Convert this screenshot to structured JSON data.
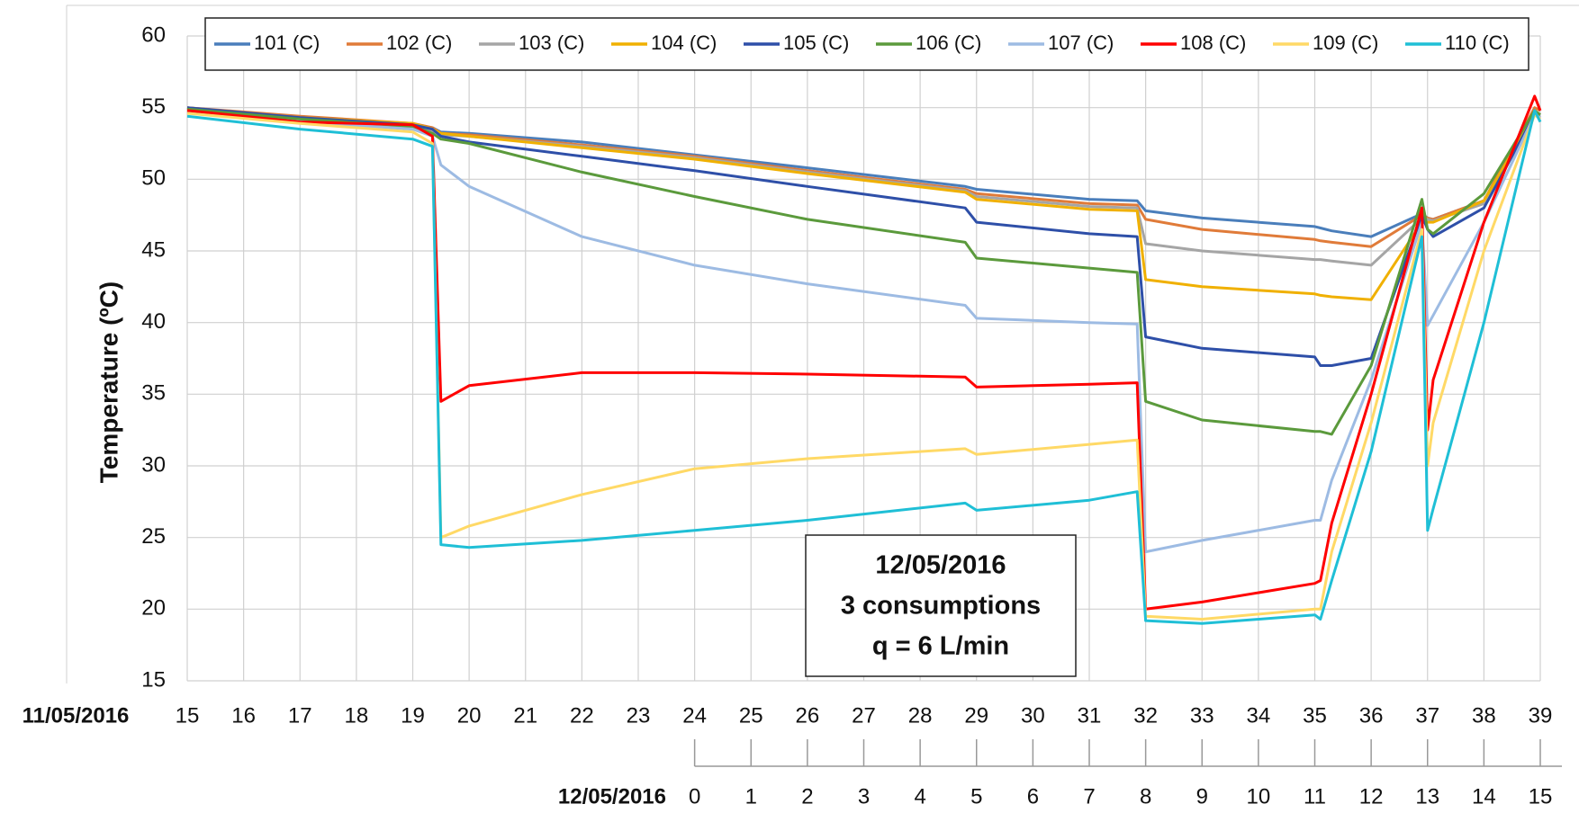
{
  "chart_data": {
    "type": "line",
    "ylabel": "Temperature (ºC)",
    "xlabel": "11/05/2016",
    "x2label": "12/05/2016",
    "annotation": [
      "12/05/2016",
      "3 consumptions",
      "q = 6 L/min"
    ],
    "x": [
      15,
      17,
      19,
      19.35,
      19.5,
      20,
      22,
      24,
      26,
      28.8,
      29,
      31,
      31.85,
      32,
      33,
      35,
      35.1,
      35.3,
      36,
      36.9,
      37,
      37.1,
      38,
      38.9,
      39
    ],
    "xlim": [
      15,
      39
    ],
    "xticks": [
      15,
      16,
      17,
      18,
      19,
      20,
      21,
      22,
      23,
      24,
      25,
      26,
      27,
      28,
      29,
      30,
      31,
      32,
      33,
      34,
      35,
      36,
      37,
      38,
      39
    ],
    "x2lim": [
      -9,
      15
    ],
    "x2ticks": [
      0,
      1,
      2,
      3,
      4,
      5,
      6,
      7,
      8,
      9,
      10,
      11,
      12,
      13,
      14,
      15
    ],
    "ylim": [
      15,
      60
    ],
    "yticks": [
      15,
      20,
      25,
      30,
      35,
      40,
      45,
      50,
      55,
      60
    ],
    "grid": true,
    "legend": "top",
    "series": [
      {
        "name": "101 (C)",
        "color": "#4a7ebb",
        "values": [
          55,
          54.3,
          53.8,
          53.6,
          53.3,
          53.2,
          52.6,
          51.7,
          50.8,
          49.5,
          49.3,
          48.6,
          48.5,
          47.8,
          47.3,
          46.7,
          46.6,
          46.4,
          46,
          47.6,
          47.3,
          47.2,
          48.5,
          54.5,
          54.5
        ]
      },
      {
        "name": "102 (C)",
        "color": "#e07b39",
        "values": [
          55,
          54.4,
          53.9,
          53.6,
          53.2,
          53.1,
          52.4,
          51.6,
          50.6,
          49.3,
          49,
          48.3,
          48.2,
          47.2,
          46.5,
          45.8,
          45.7,
          45.6,
          45.3,
          47.5,
          47.3,
          47.2,
          48.5,
          55,
          54.8
        ]
      },
      {
        "name": "103 (C)",
        "color": "#a5a5a5",
        "values": [
          54.8,
          54.2,
          53.6,
          53.4,
          53.1,
          53,
          52.3,
          51.5,
          50.5,
          49.2,
          48.8,
          48.1,
          48,
          45.5,
          45,
          44.4,
          44.4,
          44.3,
          44,
          47.3,
          47.2,
          47.1,
          48.3,
          54.7,
          54.5
        ]
      },
      {
        "name": "104 (C)",
        "color": "#f0b000",
        "values": [
          54.9,
          54.3,
          53.9,
          53.5,
          53.2,
          53,
          52.2,
          51.4,
          50.4,
          49.1,
          48.6,
          47.9,
          47.8,
          43,
          42.5,
          42,
          41.9,
          41.8,
          41.6,
          47,
          47,
          47,
          48.5,
          54.5,
          54.3
        ]
      },
      {
        "name": "105 (C)",
        "color": "#2e4fa8",
        "values": [
          55,
          54.3,
          53.8,
          53.5,
          53,
          52.6,
          51.6,
          50.6,
          49.5,
          48,
          47,
          46.2,
          46,
          39,
          38.2,
          37.6,
          37,
          37,
          37.5,
          47.5,
          46.5,
          46,
          48,
          54.5,
          54.3
        ]
      },
      {
        "name": "106 (C)",
        "color": "#5b9a3c",
        "values": [
          54.9,
          54.2,
          53.7,
          53.2,
          52.8,
          52.5,
          50.5,
          48.8,
          47.2,
          45.6,
          44.5,
          43.8,
          43.5,
          34.5,
          33.2,
          32.4,
          32.4,
          32.2,
          37,
          48.6,
          46.5,
          46.2,
          49,
          54.8,
          54.5
        ]
      },
      {
        "name": "107 (C)",
        "color": "#9dbbe3",
        "values": [
          54.7,
          54,
          53.5,
          53,
          51,
          49.5,
          46,
          44,
          42.7,
          41.2,
          40.3,
          40,
          39.9,
          24,
          24.8,
          26.2,
          26.2,
          29,
          36,
          47,
          39.8,
          40.5,
          47,
          54.5,
          54.3
        ]
      },
      {
        "name": "108 (C)",
        "color": "#ff0000",
        "values": [
          54.8,
          54,
          53.8,
          53,
          34.5,
          35.6,
          36.5,
          36.5,
          36.4,
          36.2,
          35.5,
          35.7,
          35.8,
          20,
          20.5,
          21.8,
          22,
          26,
          35,
          48,
          32.5,
          36,
          47,
          55.8,
          54.8
        ]
      },
      {
        "name": "109 (C)",
        "color": "#ffd966",
        "values": [
          54.6,
          53.9,
          53.3,
          52.5,
          25,
          25.8,
          28,
          29.8,
          30.5,
          31.2,
          30.8,
          31.5,
          31.8,
          19.5,
          19.3,
          20,
          20,
          24,
          33,
          46.5,
          30,
          33,
          45,
          54.5,
          54.2
        ]
      },
      {
        "name": "110 (C)",
        "color": "#1fbfd6",
        "values": [
          54.4,
          53.5,
          52.8,
          52.3,
          24.5,
          24.3,
          24.8,
          25.5,
          26.2,
          27.4,
          26.9,
          27.6,
          28.2,
          19.2,
          19,
          19.6,
          19.3,
          22,
          31,
          46,
          25.5,
          27,
          40,
          54.8,
          54
        ]
      }
    ]
  }
}
